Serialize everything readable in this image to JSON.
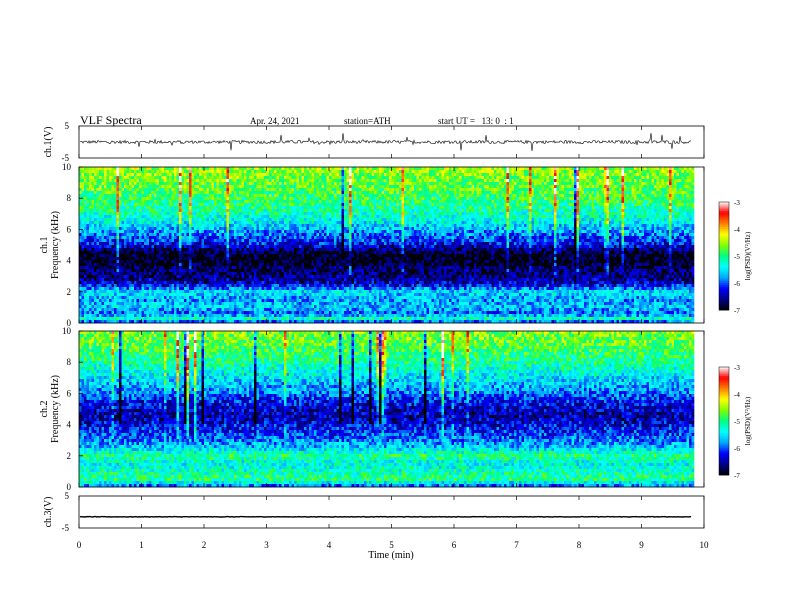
{
  "header": {
    "title": "VLF Spectra",
    "date": "Apr. 24, 2021",
    "station": "station=ATH",
    "start": "start UT =   13: 0  : 1"
  },
  "chart_data": [
    {
      "type": "line",
      "name": "ch1-waveform",
      "ylabel": "ch.1(V)",
      "ylim": [
        -5,
        5
      ],
      "ytick_labels": [
        "5",
        "-5"
      ],
      "xlim": [
        0,
        10
      ],
      "x_end_data": 9.8,
      "baseline": 0,
      "noise_amplitude": 1.0,
      "spike_amplitude": 2.5
    },
    {
      "type": "heatmap",
      "name": "ch1-spectrogram",
      "ylabel": "ch.1\nFrequency (kHz)",
      "ylim": [
        0,
        10
      ],
      "yticks": [
        0,
        2,
        4,
        6,
        8,
        10
      ],
      "xlim": [
        0,
        10
      ],
      "x_end_data": 9.8,
      "colorbar": {
        "label": "log(PSD)(V²/Hz)",
        "range": [
          -7,
          -3
        ],
        "ticks": [
          "-3",
          "-4",
          "-5",
          "-6",
          "-7"
        ]
      },
      "frequency_profile_logpsd": [
        {
          "f": 0.0,
          "v": -6.2
        },
        {
          "f": 0.3,
          "v": -5.2
        },
        {
          "f": 0.6,
          "v": -6.0
        },
        {
          "f": 1.0,
          "v": -5.6
        },
        {
          "f": 1.5,
          "v": -5.8
        },
        {
          "f": 2.0,
          "v": -5.5
        },
        {
          "f": 2.5,
          "v": -6.4
        },
        {
          "f": 3.0,
          "v": -6.6
        },
        {
          "f": 3.5,
          "v": -6.7
        },
        {
          "f": 4.0,
          "v": -7.0
        },
        {
          "f": 4.5,
          "v": -6.9
        },
        {
          "f": 5.0,
          "v": -6.3
        },
        {
          "f": 5.5,
          "v": -6.0
        },
        {
          "f": 6.0,
          "v": -5.7
        },
        {
          "f": 6.5,
          "v": -5.4
        },
        {
          "f": 7.0,
          "v": -5.2
        },
        {
          "f": 8.0,
          "v": -4.9
        },
        {
          "f": 9.0,
          "v": -4.7
        },
        {
          "f": 10.0,
          "v": -4.5
        }
      ]
    },
    {
      "type": "heatmap",
      "name": "ch2-spectrogram",
      "ylabel": "ch.2\nFrequency (kHz)",
      "ylim": [
        0,
        10
      ],
      "yticks": [
        0,
        2,
        4,
        6,
        8,
        10
      ],
      "xlim": [
        0,
        10
      ],
      "x_end_data": 9.8,
      "colorbar": {
        "label": "log(PSD)(V²/Hz)",
        "range": [
          -7,
          -3
        ],
        "ticks": [
          "-3",
          "-4",
          "-5",
          "-6",
          "-7"
        ]
      },
      "frequency_profile_logpsd": [
        {
          "f": 0.0,
          "v": -6.0
        },
        {
          "f": 0.5,
          "v": -5.0
        },
        {
          "f": 1.0,
          "v": -5.2
        },
        {
          "f": 1.5,
          "v": -5.4
        },
        {
          "f": 2.0,
          "v": -5.0
        },
        {
          "f": 2.5,
          "v": -5.6
        },
        {
          "f": 3.0,
          "v": -5.9
        },
        {
          "f": 3.5,
          "v": -6.1
        },
        {
          "f": 4.0,
          "v": -6.3
        },
        {
          "f": 4.5,
          "v": -6.5
        },
        {
          "f": 5.0,
          "v": -6.4
        },
        {
          "f": 5.5,
          "v": -6.2
        },
        {
          "f": 6.0,
          "v": -5.9
        },
        {
          "f": 7.0,
          "v": -5.5
        },
        {
          "f": 8.0,
          "v": -5.1
        },
        {
          "f": 9.0,
          "v": -4.8
        },
        {
          "f": 10.0,
          "v": -4.6
        }
      ]
    },
    {
      "type": "line",
      "name": "ch3-waveform",
      "ylabel": "ch.3(V)",
      "ylim": [
        -5,
        5
      ],
      "ytick_labels": [
        "5",
        "-5"
      ],
      "xlim": [
        0,
        10
      ],
      "x_end_data": 9.8,
      "baseline": -1.5,
      "noise_amplitude": 0.15,
      "spike_amplitude": 0
    }
  ],
  "x_axis": {
    "label": "Time (min)",
    "ticks": [
      "0",
      "1",
      "2",
      "3",
      "4",
      "5",
      "6",
      "7",
      "8",
      "9",
      "10"
    ]
  },
  "colors": {
    "colormap": [
      "#000000",
      "#00008b",
      "#0000ff",
      "#00aaff",
      "#00ffff",
      "#00ff80",
      "#80ff00",
      "#ffff00",
      "#ff8000",
      "#ff0000",
      "#ffffff"
    ]
  }
}
